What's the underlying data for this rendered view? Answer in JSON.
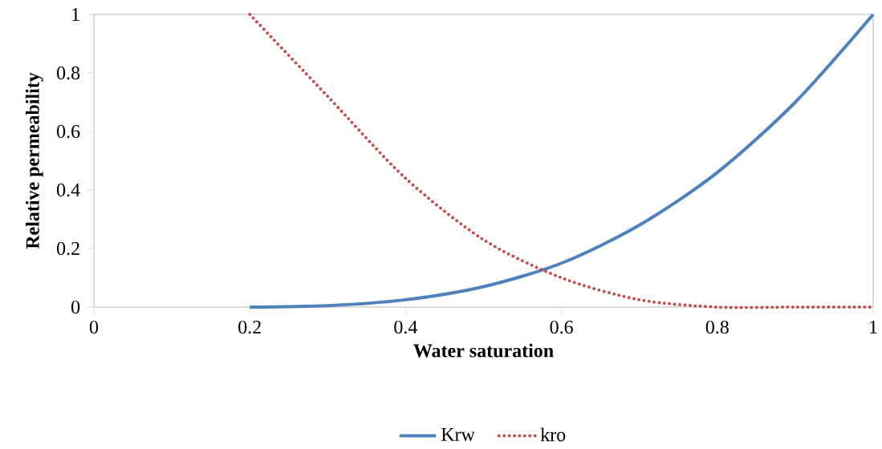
{
  "chart_data": {
    "type": "line",
    "xlabel": "Water saturation",
    "ylabel": "Relative permeability",
    "xlim": [
      0,
      1
    ],
    "ylim": [
      0,
      1
    ],
    "xticks": [
      0,
      0.2,
      0.4,
      0.6,
      0.8,
      1
    ],
    "yticks": [
      0,
      0.2,
      0.4,
      0.6,
      0.8,
      1
    ],
    "legend": "bottom",
    "series": [
      {
        "name": "Krw",
        "color": "#4f81bd",
        "line_style": "solid",
        "x": [
          0.2,
          0.3,
          0.4,
          0.5,
          0.6,
          0.7,
          0.8,
          0.9,
          1
        ],
        "values": [
          0,
          0.005,
          0.025,
          0.07,
          0.15,
          0.28,
          0.46,
          0.7,
          1
        ]
      },
      {
        "name": "kro",
        "color": "#c0504d",
        "line_style": "dotted",
        "x": [
          0.2,
          0.3,
          0.4,
          0.5,
          0.6,
          0.7,
          0.8,
          0.9,
          1
        ],
        "values": [
          1,
          0.72,
          0.44,
          0.23,
          0.1,
          0.025,
          0,
          0,
          0
        ]
      }
    ]
  }
}
